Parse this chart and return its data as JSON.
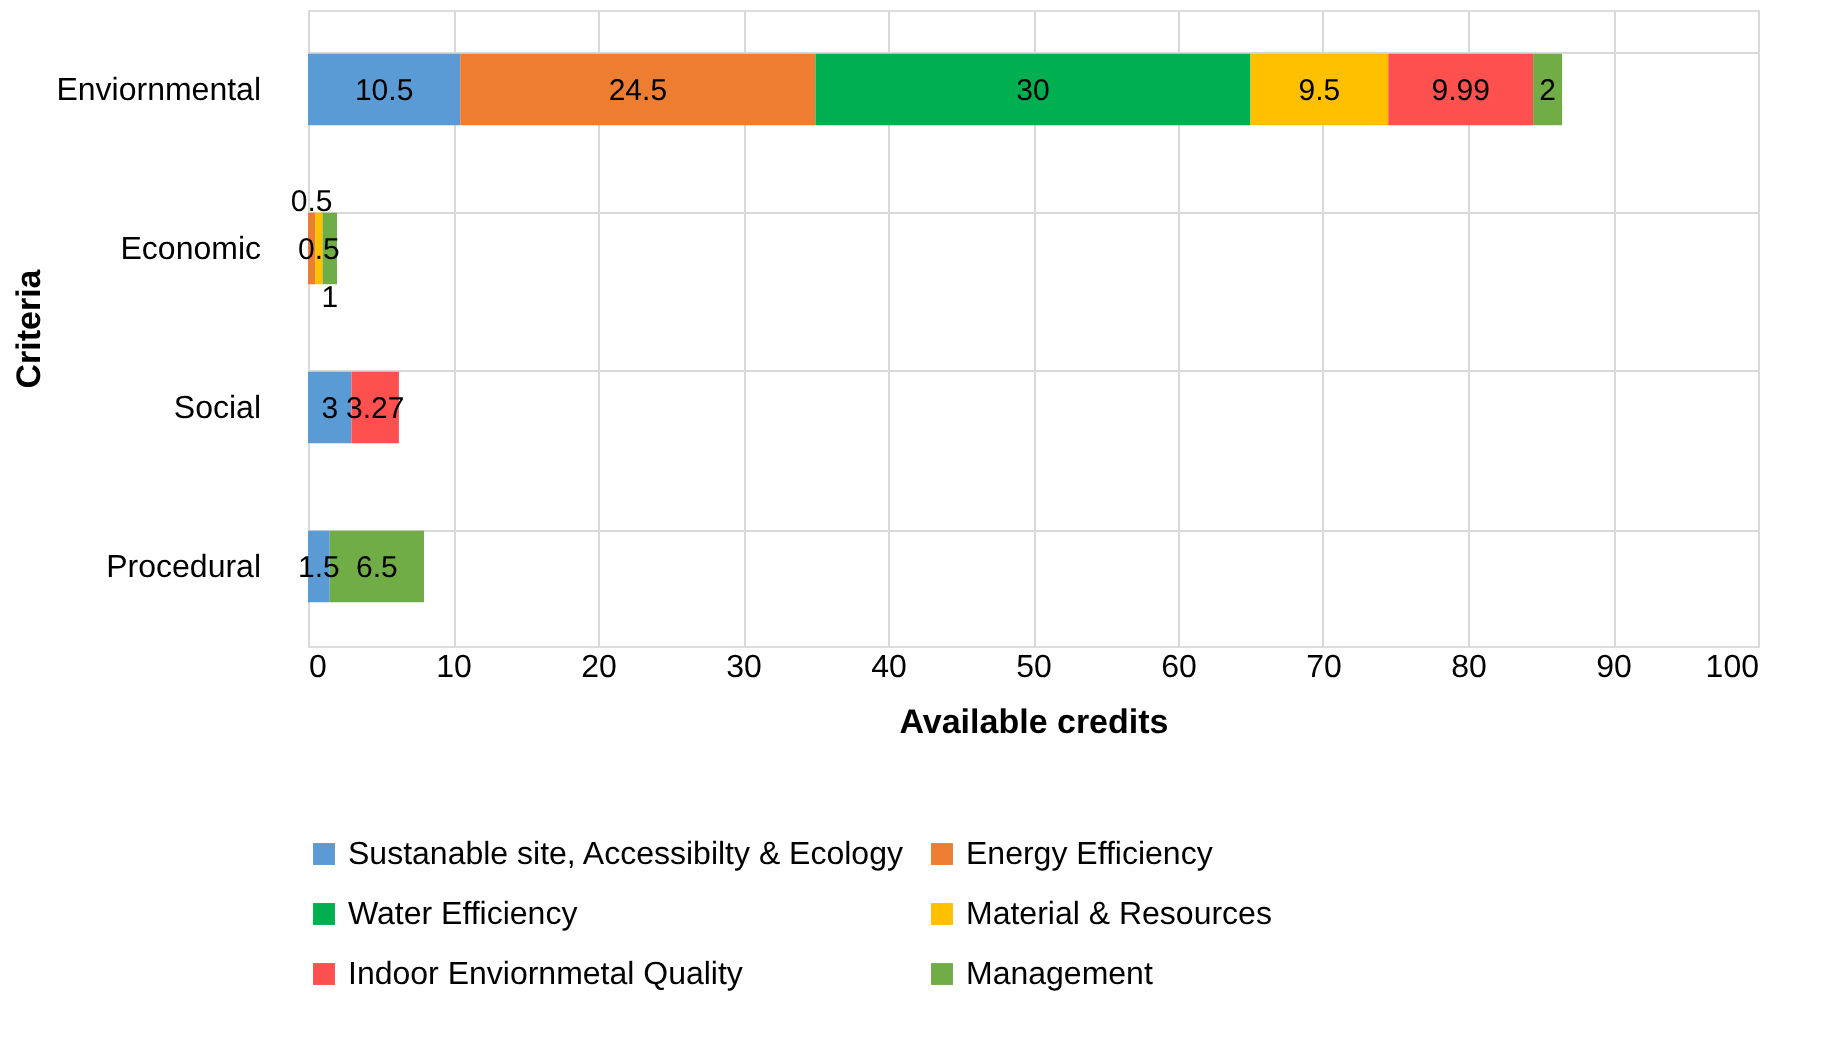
{
  "chart_data": {
    "type": "bar",
    "orientation": "horizontal",
    "stacked": true,
    "categories": [
      "Enviornmental",
      "Economic",
      "Social",
      "Procedural"
    ],
    "xlabel": "Available credits",
    "ylabel": "Criteria",
    "xlim": [
      0,
      100
    ],
    "xticks": [
      0,
      10,
      20,
      30,
      40,
      50,
      60,
      70,
      80,
      90,
      100
    ],
    "grid": true,
    "legend": "bottom",
    "data_labels": true,
    "series": [
      {
        "name": "Sustanable site, Accessibilty & Ecology",
        "color": "#5b9bd5",
        "values": [
          10.5,
          null,
          3,
          1.5
        ]
      },
      {
        "name": "Energy Efficiency",
        "color": "#ed7d31",
        "values": [
          24.5,
          0.5,
          null,
          null
        ]
      },
      {
        "name": "Water Efficiency",
        "color": "#00b050",
        "values": [
          30,
          null,
          null,
          null
        ]
      },
      {
        "name": "Material & Resources",
        "color": "#ffc000",
        "values": [
          9.5,
          0.5,
          null,
          null
        ]
      },
      {
        "name": "Indoor Enviornmetal Quality",
        "color": "#ff5050",
        "values": [
          9.99,
          null,
          3.27,
          null
        ]
      },
      {
        "name": "Management",
        "color": "#70ad47",
        "values": [
          2,
          1,
          null,
          6.5
        ]
      }
    ]
  }
}
